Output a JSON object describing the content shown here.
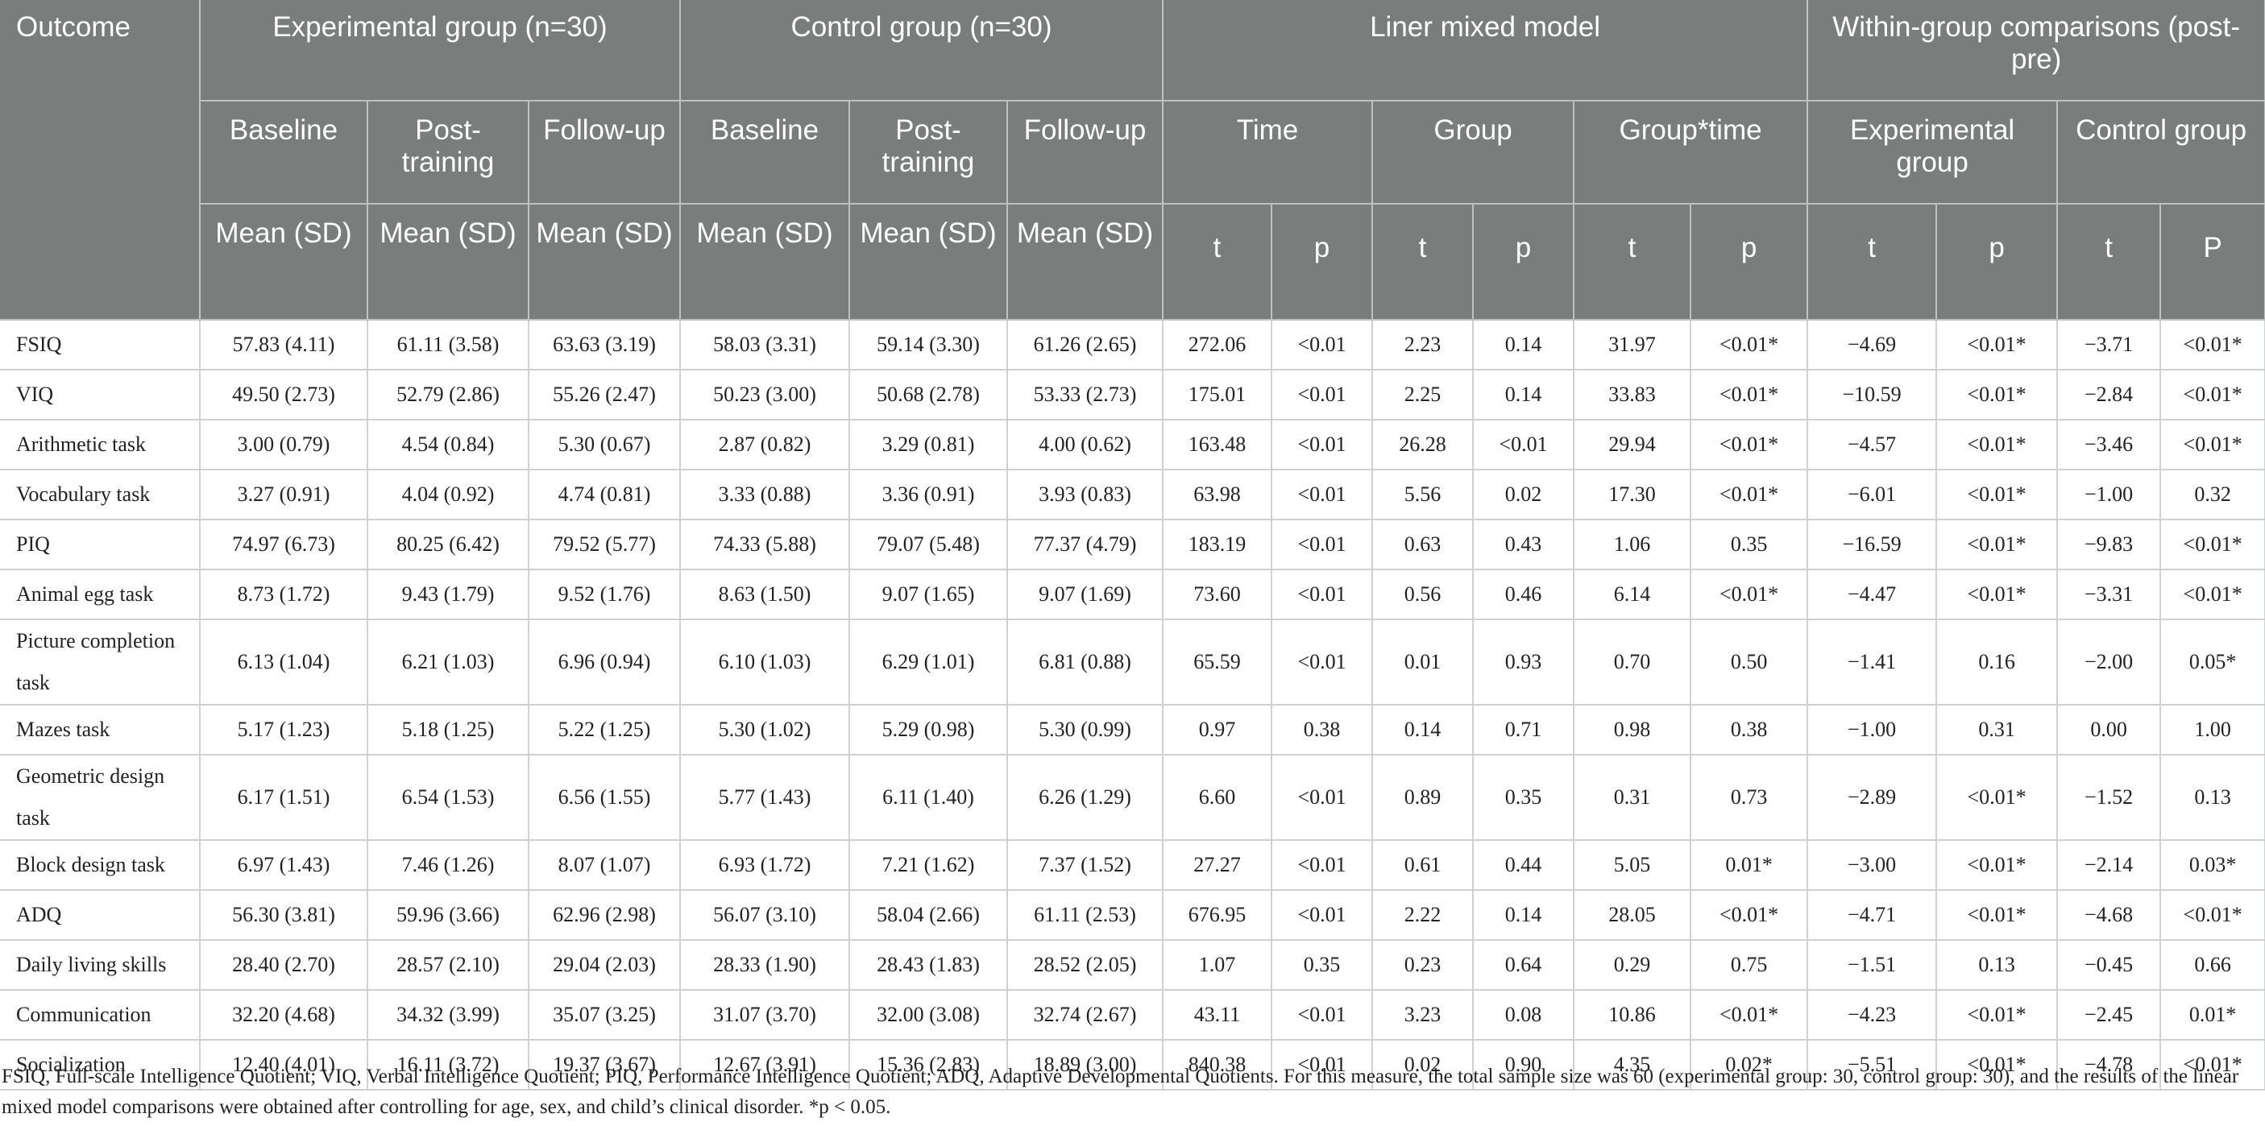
{
  "header": {
    "outcome": "Outcome",
    "experimental_group": "Experimental group (n=30)",
    "control_group": "Control group (n=30)",
    "mixed_model": "Liner mixed model",
    "within_group": "Within-group comparisons (post-pre)",
    "baseline": "Baseline",
    "post_training": "Post-training",
    "follow_up": "Follow-up",
    "time": "Time",
    "group": "Group",
    "group_time": "Group*time",
    "wg_experimental": "Experimental group",
    "wg_control": "Control group",
    "mean_sd": "Mean (SD)",
    "t": "t",
    "p": "p",
    "p_upper": "P"
  },
  "rows": [
    {
      "name": "FSIQ",
      "cells": [
        "57.83 (4.11)",
        "61.11 (3.58)",
        "63.63 (3.19)",
        "58.03 (3.31)",
        "59.14 (3.30)",
        "61.26 (2.65)",
        "272.06",
        "<0.01",
        "2.23",
        "0.14",
        "31.97",
        "<0.01*",
        "−4.69",
        "<0.01*",
        "−3.71",
        "<0.01*"
      ]
    },
    {
      "name": "VIQ",
      "cells": [
        "49.50 (2.73)",
        "52.79 (2.86)",
        "55.26 (2.47)",
        "50.23 (3.00)",
        "50.68 (2.78)",
        "53.33 (2.73)",
        "175.01",
        "<0.01",
        "2.25",
        "0.14",
        "33.83",
        "<0.01*",
        "−10.59",
        "<0.01*",
        "−2.84",
        "<0.01*"
      ]
    },
    {
      "name": "Arithmetic task",
      "cells": [
        "3.00 (0.79)",
        "4.54 (0.84)",
        "5.30 (0.67)",
        "2.87 (0.82)",
        "3.29 (0.81)",
        "4.00 (0.62)",
        "163.48",
        "<0.01",
        "26.28",
        "<0.01",
        "29.94",
        "<0.01*",
        "−4.57",
        "<0.01*",
        "−3.46",
        "<0.01*"
      ]
    },
    {
      "name": "Vocabulary task",
      "cells": [
        "3.27 (0.91)",
        "4.04 (0.92)",
        "4.74 (0.81)",
        "3.33 (0.88)",
        "3.36 (0.91)",
        "3.93 (0.83)",
        "63.98",
        "<0.01",
        "5.56",
        "0.02",
        "17.30",
        "<0.01*",
        "−6.01",
        "<0.01*",
        "−1.00",
        "0.32"
      ]
    },
    {
      "name": "PIQ",
      "cells": [
        "74.97 (6.73)",
        "80.25 (6.42)",
        "79.52 (5.77)",
        "74.33 (5.88)",
        "79.07 (5.48)",
        "77.37 (4.79)",
        "183.19",
        "<0.01",
        "0.63",
        "0.43",
        "1.06",
        "0.35",
        "−16.59",
        "<0.01*",
        "−9.83",
        "<0.01*"
      ]
    },
    {
      "name": "Animal egg task",
      "cells": [
        "8.73 (1.72)",
        "9.43 (1.79)",
        "9.52 (1.76)",
        "8.63 (1.50)",
        "9.07 (1.65)",
        "9.07 (1.69)",
        "73.60",
        "<0.01",
        "0.56",
        "0.46",
        "6.14",
        "<0.01*",
        "−4.47",
        "<0.01*",
        "−3.31",
        "<0.01*"
      ]
    },
    {
      "name": "Picture completion task",
      "cells": [
        "6.13 (1.04)",
        "6.21 (1.03)",
        "6.96 (0.94)",
        "6.10 (1.03)",
        "6.29 (1.01)",
        "6.81 (0.88)",
        "65.59",
        "<0.01",
        "0.01",
        "0.93",
        "0.70",
        "0.50",
        "−1.41",
        "0.16",
        "−2.00",
        "0.05*"
      ]
    },
    {
      "name": "Mazes task",
      "cells": [
        "5.17 (1.23)",
        "5.18 (1.25)",
        "5.22 (1.25)",
        "5.30 (1.02)",
        "5.29 (0.98)",
        "5.30 (0.99)",
        "0.97",
        "0.38",
        "0.14",
        "0.71",
        "0.98",
        "0.38",
        "−1.00",
        "0.31",
        "0.00",
        "1.00"
      ]
    },
    {
      "name": "Geometric design task",
      "cells": [
        "6.17 (1.51)",
        "6.54 (1.53)",
        "6.56 (1.55)",
        "5.77 (1.43)",
        "6.11 (1.40)",
        "6.26 (1.29)",
        "6.60",
        "<0.01",
        "0.89",
        "0.35",
        "0.31",
        "0.73",
        "−2.89",
        "<0.01*",
        "−1.52",
        "0.13"
      ]
    },
    {
      "name": "Block design task",
      "cells": [
        "6.97 (1.43)",
        "7.46 (1.26)",
        "8.07 (1.07)",
        "6.93 (1.72)",
        "7.21 (1.62)",
        "7.37 (1.52)",
        "27.27",
        "<0.01",
        "0.61",
        "0.44",
        "5.05",
        "0.01*",
        "−3.00",
        "<0.01*",
        "−2.14",
        "0.03*"
      ]
    },
    {
      "name": "ADQ",
      "cells": [
        "56.30 (3.81)",
        "59.96 (3.66)",
        "62.96 (2.98)",
        "56.07 (3.10)",
        "58.04 (2.66)",
        "61.11 (2.53)",
        "676.95",
        "<0.01",
        "2.22",
        "0.14",
        "28.05",
        "<0.01*",
        "−4.71",
        "<0.01*",
        "−4.68",
        "<0.01*"
      ]
    },
    {
      "name": "Daily living skills",
      "cells": [
        "28.40 (2.70)",
        "28.57 (2.10)",
        "29.04 (2.03)",
        "28.33 (1.90)",
        "28.43 (1.83)",
        "28.52 (2.05)",
        "1.07",
        "0.35",
        "0.23",
        "0.64",
        "0.29",
        "0.75",
        "−1.51",
        "0.13",
        "−0.45",
        "0.66"
      ]
    },
    {
      "name": "Communication",
      "cells": [
        "32.20 (4.68)",
        "34.32 (3.99)",
        "35.07 (3.25)",
        "31.07 (3.70)",
        "32.00 (3.08)",
        "32.74 (2.67)",
        "43.11",
        "<0.01",
        "3.23",
        "0.08",
        "10.86",
        "<0.01*",
        "−4.23",
        "<0.01*",
        "−2.45",
        "0.01*"
      ]
    },
    {
      "name": "Socialization",
      "cells": [
        "12.40 (4.01)",
        "16.11 (3.72)",
        "19.37 (3.67)",
        "12.67 (3.91)",
        "15.36 (2.83)",
        "18.89 (3.00)",
        "840.38",
        "<0.01",
        "0.02",
        "0.90",
        "4.35",
        "0.02*",
        "−5.51",
        "<0.01*",
        "−4.78",
        "<0.01*"
      ]
    }
  ],
  "footnote": "FSIQ, Full-scale Intelligence Quotient; VIQ, Verbal Intelligence Quotient; PIQ, Performance Intelligence Quotient; ADQ, Adaptive Developmental Quotients. For this measure, the total sample size was 60 (experimental group: 30, control group: 30), and the results of the linear mixed model comparisons were obtained after controlling for age, sex, and child’s clinical disorder. *p < 0.05."
}
